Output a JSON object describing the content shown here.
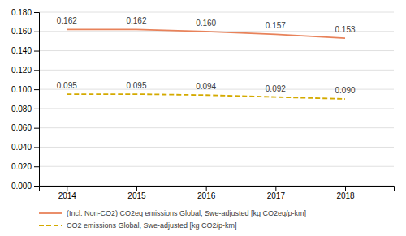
{
  "chart_data": {
    "type": "line",
    "x": [
      2014,
      2015,
      2016,
      2017,
      2018
    ],
    "series": [
      {
        "name": "(Incl. Non-CO2) CO2eq emissions Global, Swe-adjusted [kg CO2eq/p-km]",
        "color": "#E8825A",
        "line_style": "solid",
        "values": [
          0.162,
          0.162,
          0.16,
          0.157,
          0.153
        ],
        "value_labels": [
          "0.162",
          "0.162",
          "0.160",
          "0.157",
          "0.153"
        ]
      },
      {
        "name": "CO2 emissions Global, Swe-adjusted [kg CO2/p-km]",
        "color": "#D4AA00",
        "line_style": "dashed",
        "values": [
          0.095,
          0.095,
          0.094,
          0.092,
          0.09
        ],
        "value_labels": [
          "0.095",
          "0.095",
          "0.094",
          "0.092",
          "0.090"
        ]
      }
    ],
    "xlim": [
      2013.6,
      2018.7
    ],
    "xticks": [
      2014,
      2015,
      2016,
      2017,
      2018
    ],
    "ylim": [
      0.0,
      0.18
    ],
    "yticks": [
      {
        "value": 0.0,
        "label": "0.000"
      },
      {
        "value": 0.02,
        "label": "0.020"
      },
      {
        "value": 0.04,
        "label": "0.040"
      },
      {
        "value": 0.06,
        "label": "0.060"
      },
      {
        "value": 0.08,
        "label": "0.080"
      },
      {
        "value": 0.1,
        "label": "0.100"
      },
      {
        "value": 0.12,
        "label": "0.120"
      },
      {
        "value": 0.14,
        "label": "0.140"
      },
      {
        "value": 0.16,
        "label": "0.160"
      },
      {
        "value": 0.18,
        "label": "0.180"
      }
    ],
    "grid": true,
    "data_labels": true,
    "legend": "bottom"
  }
}
